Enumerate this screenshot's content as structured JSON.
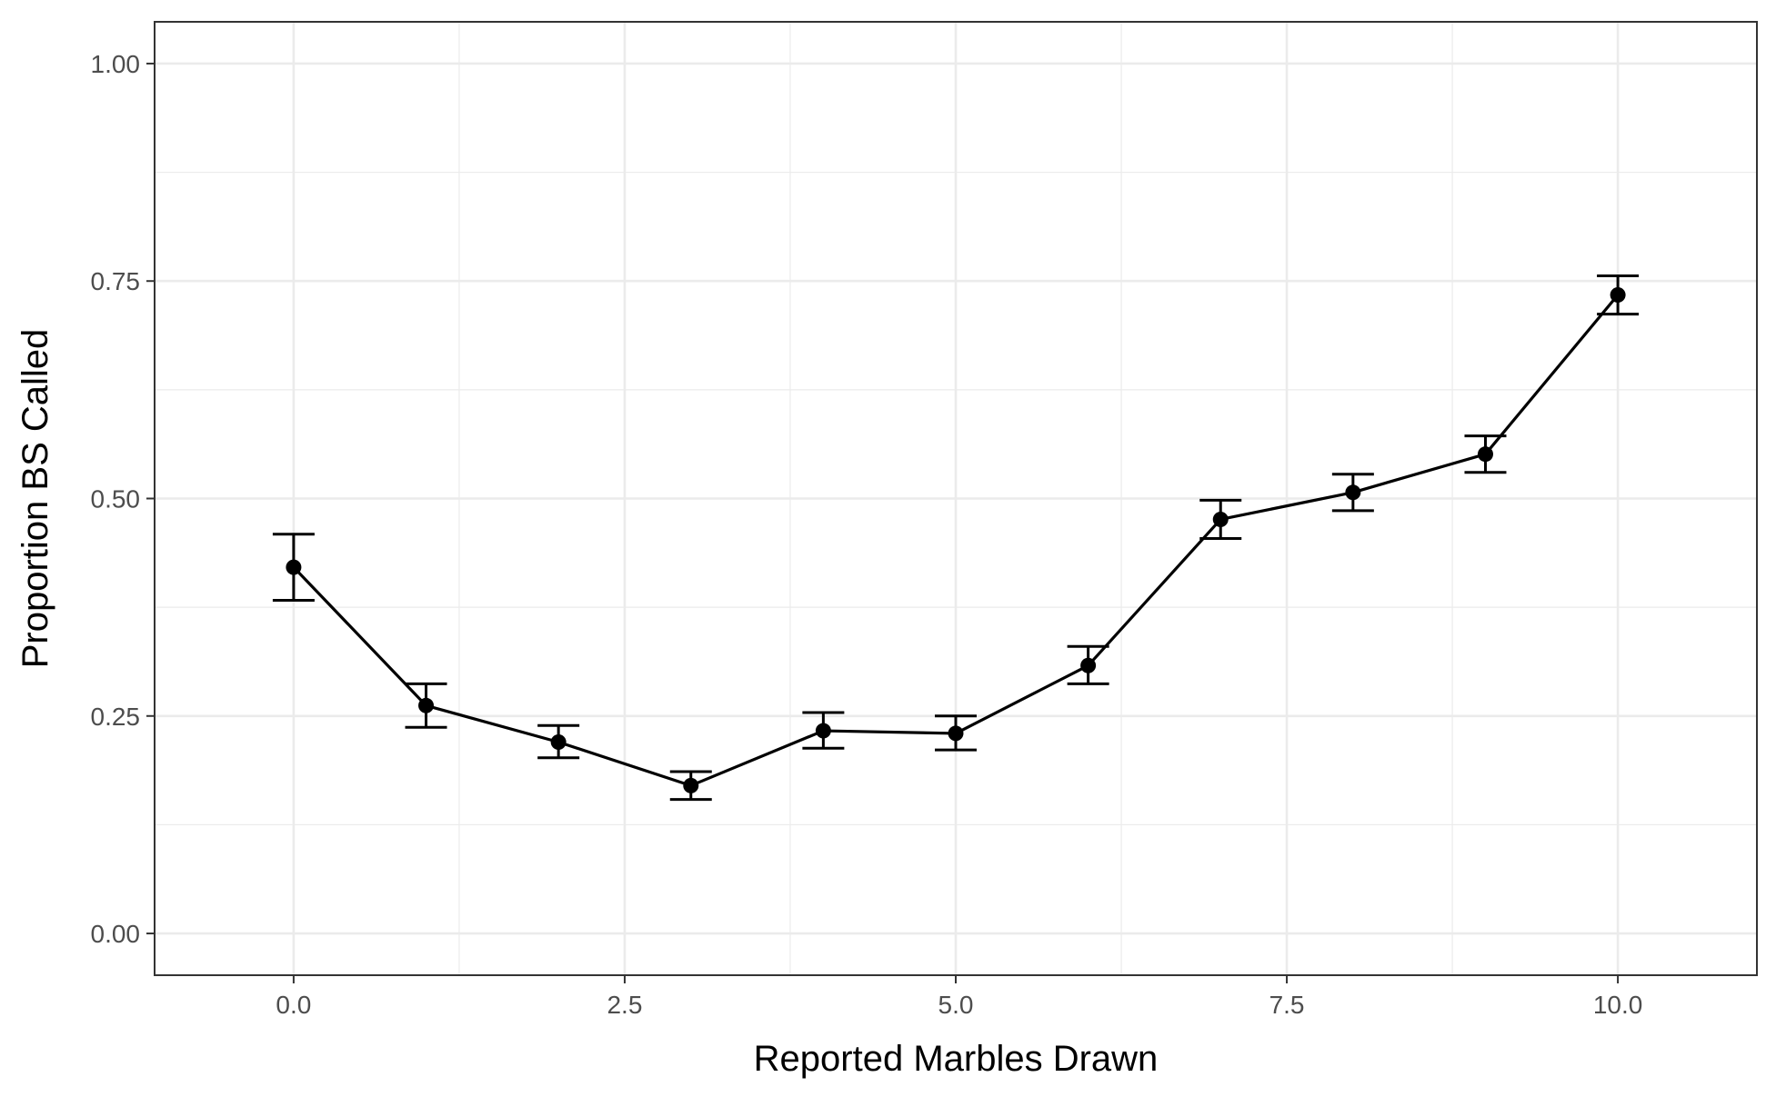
{
  "chart_data": {
    "type": "line",
    "title": "",
    "xlabel": "Reported Marbles Drawn",
    "ylabel": "Proportion BS Called",
    "xlim": [
      -1.05,
      11.05
    ],
    "ylim": [
      -0.048,
      1.048
    ],
    "x_ticks": [
      0,
      2.5,
      5,
      7.5,
      10
    ],
    "x_tick_labels": [
      "0.0",
      "2.5",
      "5.0",
      "7.5",
      "10.0"
    ],
    "y_ticks": [
      0,
      0.25,
      0.5,
      0.75,
      1
    ],
    "y_tick_labels": [
      "0.00",
      "0.25",
      "0.50",
      "0.75",
      "1.00"
    ],
    "grid": true,
    "error_bars": true,
    "series": [
      {
        "x": [
          0,
          1,
          2,
          3,
          4,
          5,
          6,
          7,
          8,
          9,
          10
        ],
        "y": [
          0.421,
          0.262,
          0.22,
          0.17,
          0.233,
          0.23,
          0.308,
          0.476,
          0.507,
          0.551,
          0.734
        ],
        "ymin": [
          0.383,
          0.237,
          0.202,
          0.154,
          0.213,
          0.211,
          0.287,
          0.454,
          0.486,
          0.53,
          0.712
        ],
        "ymax": [
          0.459,
          0.287,
          0.239,
          0.186,
          0.254,
          0.25,
          0.33,
          0.498,
          0.528,
          0.572,
          0.756
        ]
      }
    ],
    "colors": {
      "line": "#000000",
      "grid": "#ebebeb",
      "panel_border": "#333333",
      "tick_label": "#4d4d4d"
    }
  }
}
